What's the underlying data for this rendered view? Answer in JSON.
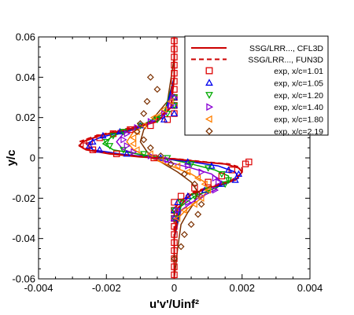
{
  "chart_data": {
    "type": "scatter",
    "xlabel": "u'v'/Uinf²",
    "ylabel": "y/c",
    "xlim": [
      -0.004,
      0.004
    ],
    "ylim": [
      -0.06,
      0.06
    ],
    "xticks": [
      -0.004,
      -0.002,
      0,
      0.002,
      0.004
    ],
    "xtick_labels": [
      "-0.004",
      "-0.002",
      "0",
      "0.002",
      "0.004"
    ],
    "yticks": [
      -0.06,
      -0.04,
      -0.02,
      0,
      0.02,
      0.04,
      0.06
    ],
    "ytick_labels": [
      "-0.06",
      "-0.04",
      "-0.02",
      "0",
      "0.02",
      "0.04",
      "0.06"
    ],
    "grid": false,
    "legend_position": "top-right",
    "lines": [
      {
        "name": "SSG/LRR..., CFL3D",
        "color": "#cc0000",
        "dash": "solid",
        "points": [
          [
            0,
            0.06
          ],
          [
            0,
            0.04
          ],
          [
            -0.0001,
            0.025
          ],
          [
            -0.0005,
            0.018
          ],
          [
            -0.0014,
            0.014
          ],
          [
            -0.0022,
            0.011
          ],
          [
            -0.0027,
            0.008
          ],
          [
            -0.0028,
            0.006
          ],
          [
            -0.0026,
            0.004
          ],
          [
            -0.0019,
            0.002
          ],
          [
            -0.001,
            0.0005
          ],
          [
            0,
            -0.0005
          ],
          [
            0.0008,
            -0.002
          ],
          [
            0.0015,
            -0.003
          ],
          [
            0.0019,
            -0.005
          ],
          [
            0.002,
            -0.007
          ],
          [
            0.0018,
            -0.011
          ],
          [
            0.0012,
            -0.014
          ],
          [
            0.0005,
            -0.018
          ],
          [
            0.0001,
            -0.025
          ],
          [
            0,
            -0.04
          ],
          [
            0,
            -0.06
          ]
        ]
      },
      {
        "name": "SSG/LRR..., FUN3D",
        "color": "#cc0000",
        "dash": "dashed",
        "points": [
          [
            0,
            0.06
          ],
          [
            0,
            0.04
          ],
          [
            -0.0001,
            0.025
          ],
          [
            -0.0006,
            0.018
          ],
          [
            -0.0015,
            0.014
          ],
          [
            -0.0023,
            0.011
          ],
          [
            -0.0028,
            0.008
          ],
          [
            -0.0028,
            0.006
          ],
          [
            -0.0025,
            0.004
          ],
          [
            -0.0018,
            0.002
          ],
          [
            -0.0009,
            0.0005
          ],
          [
            0.0001,
            -0.0006
          ],
          [
            0.0009,
            -0.002
          ],
          [
            0.0016,
            -0.003
          ],
          [
            0.002,
            -0.005
          ],
          [
            0.002,
            -0.0075
          ],
          [
            0.0017,
            -0.011
          ],
          [
            0.0011,
            -0.014
          ],
          [
            0.0004,
            -0.018
          ],
          [
            0,
            -0.025
          ],
          [
            0,
            -0.04
          ],
          [
            0,
            -0.06
          ]
        ]
      },
      {
        "name": "",
        "color": "#0000ee",
        "dash": "solid",
        "points": [
          [
            0,
            0.04
          ],
          [
            -0.0003,
            0.02
          ],
          [
            -0.0013,
            0.014
          ],
          [
            -0.0022,
            0.01
          ],
          [
            -0.0026,
            0.007
          ],
          [
            -0.0024,
            0.004
          ],
          [
            -0.0016,
            0.002
          ],
          [
            -0.0005,
            0
          ],
          [
            0.0005,
            -0.002
          ],
          [
            0.0013,
            -0.004
          ],
          [
            0.0018,
            -0.007
          ],
          [
            0.0019,
            -0.01
          ],
          [
            0.0015,
            -0.013
          ],
          [
            0.0008,
            -0.016
          ],
          [
            0.0002,
            -0.021
          ],
          [
            0,
            -0.04
          ]
        ]
      },
      {
        "name": "",
        "color": "#00aa00",
        "dash": "solid",
        "points": [
          [
            0,
            0.04
          ],
          [
            -0.0003,
            0.022
          ],
          [
            -0.0011,
            0.015
          ],
          [
            -0.0018,
            0.011
          ],
          [
            -0.0021,
            0.007
          ],
          [
            -0.0018,
            0.004
          ],
          [
            -0.0011,
            0.002
          ],
          [
            -0.0003,
            0
          ],
          [
            0.0005,
            -0.003
          ],
          [
            0.0012,
            -0.006
          ],
          [
            0.0016,
            -0.009
          ],
          [
            0.0016,
            -0.012
          ],
          [
            0.0012,
            -0.015
          ],
          [
            0.0006,
            -0.019
          ],
          [
            0.0002,
            -0.024
          ],
          [
            0,
            -0.04
          ]
        ]
      },
      {
        "name": "",
        "color": "#8a00d4",
        "dash": "solid",
        "points": [
          [
            0,
            0.04
          ],
          [
            -0.0002,
            0.023
          ],
          [
            -0.0009,
            0.016
          ],
          [
            -0.0015,
            0.012
          ],
          [
            -0.0017,
            0.008
          ],
          [
            -0.0015,
            0.004
          ],
          [
            -0.0009,
            0.001
          ],
          [
            -0.0002,
            -0.002
          ],
          [
            0.0005,
            -0.005
          ],
          [
            0.0011,
            -0.008
          ],
          [
            0.0014,
            -0.012
          ],
          [
            0.0012,
            -0.016
          ],
          [
            0.0007,
            -0.02
          ],
          [
            0.0002,
            -0.026
          ],
          [
            0,
            -0.04
          ]
        ]
      },
      {
        "name": "",
        "color": "#ff7f00",
        "dash": "solid",
        "points": [
          [
            0,
            0.04
          ],
          [
            -0.0002,
            0.025
          ],
          [
            -0.0007,
            0.018
          ],
          [
            -0.0012,
            0.013
          ],
          [
            -0.0014,
            0.008
          ],
          [
            -0.0012,
            0.004
          ],
          [
            -0.0007,
            0
          ],
          [
            -0.0001,
            -0.004
          ],
          [
            0.0005,
            -0.008
          ],
          [
            0.0009,
            -0.012
          ],
          [
            0.001,
            -0.016
          ],
          [
            0.0008,
            -0.02
          ],
          [
            0.0004,
            -0.025
          ],
          [
            0.0001,
            -0.03
          ],
          [
            0,
            -0.04
          ]
        ]
      },
      {
        "name": "",
        "color": "#7b3000",
        "dash": "solid",
        "points": [
          [
            0,
            0.05
          ],
          [
            -0.0002,
            0.028
          ],
          [
            -0.0006,
            0.02
          ],
          [
            -0.0009,
            0.014
          ],
          [
            -0.001,
            0.008
          ],
          [
            -0.0008,
            0.003
          ],
          [
            -0.0004,
            -0.002
          ],
          [
            0.0001,
            -0.007
          ],
          [
            0.0005,
            -0.012
          ],
          [
            0.0007,
            -0.017
          ],
          [
            0.0006,
            -0.022
          ],
          [
            0.0004,
            -0.027
          ],
          [
            0.0002,
            -0.033
          ],
          [
            0.0001,
            -0.045
          ],
          [
            0,
            -0.06
          ]
        ]
      }
    ],
    "series": [
      {
        "name": "exp, x/c=1.01",
        "marker": "square",
        "color": "#dd0000",
        "points": [
          [
            0,
            0.058
          ],
          [
            0,
            0.054
          ],
          [
            0,
            0.05
          ],
          [
            0,
            0.046
          ],
          [
            0,
            0.042
          ],
          [
            0,
            0.038
          ],
          [
            0,
            0.034
          ],
          [
            0,
            0.03
          ],
          [
            0,
            0.026
          ],
          [
            0,
            0.022
          ],
          [
            -0.0002,
            0.019
          ],
          [
            -0.0007,
            0.016
          ],
          [
            -0.0013,
            0.014
          ],
          [
            -0.0018,
            0.012
          ],
          [
            -0.0022,
            0.01
          ],
          [
            -0.0025,
            0.008
          ],
          [
            -0.0026,
            0.006
          ],
          [
            -0.0024,
            0.004
          ],
          [
            -0.0017,
            0.002
          ],
          [
            -0.0006,
            0
          ],
          [
            0.0022,
            -0.002
          ],
          [
            0.0021,
            -0.003
          ],
          [
            0.0017,
            -0.006
          ],
          [
            0.0014,
            -0.009
          ],
          [
            0.001,
            -0.012
          ],
          [
            0.0006,
            -0.015
          ],
          [
            0.0002,
            -0.019
          ],
          [
            0,
            -0.022
          ],
          [
            0,
            -0.026
          ],
          [
            0,
            -0.03
          ],
          [
            0,
            -0.034
          ],
          [
            0,
            -0.038
          ],
          [
            0,
            -0.042
          ],
          [
            0,
            -0.046
          ],
          [
            0,
            -0.05
          ],
          [
            0,
            -0.054
          ],
          [
            0,
            -0.058
          ]
        ]
      },
      {
        "name": "exp, x/c=1.05",
        "marker": "triangle-up",
        "color": "#0000ee",
        "points": [
          [
            0,
            0.03
          ],
          [
            0,
            0.026
          ],
          [
            0,
            0.022
          ],
          [
            -0.0003,
            0.019
          ],
          [
            -0.001,
            0.016
          ],
          [
            -0.0016,
            0.013
          ],
          [
            -0.0021,
            0.011
          ],
          [
            -0.0024,
            0.008
          ],
          [
            -0.0025,
            0.006
          ],
          [
            -0.0022,
            0.004
          ],
          [
            -0.0014,
            0.002
          ],
          [
            -0.0004,
            0
          ],
          [
            0.0004,
            -0.002
          ],
          [
            0.0011,
            -0.004
          ],
          [
            0.0016,
            -0.006
          ],
          [
            0.0019,
            -0.008
          ],
          [
            0.0018,
            -0.011
          ],
          [
            0.0014,
            -0.013
          ],
          [
            0.0009,
            -0.016
          ],
          [
            0.0004,
            -0.019
          ],
          [
            0.0001,
            -0.022
          ],
          [
            0,
            -0.026
          ],
          [
            0,
            -0.03
          ]
        ]
      },
      {
        "name": "exp, x/c=1.20",
        "marker": "triangle-down",
        "color": "#00aa00",
        "points": [
          [
            0,
            0.03
          ],
          [
            0,
            0.026
          ],
          [
            -0.0002,
            0.022
          ],
          [
            -0.0005,
            0.019
          ],
          [
            -0.001,
            0.016
          ],
          [
            -0.0015,
            0.013
          ],
          [
            -0.0018,
            0.011
          ],
          [
            -0.002,
            0.008
          ],
          [
            -0.0019,
            0.006
          ],
          [
            -0.0015,
            0.004
          ],
          [
            -0.0009,
            0.002
          ],
          [
            -0.0002,
            0
          ],
          [
            0.0005,
            -0.003
          ],
          [
            0.001,
            -0.005
          ],
          [
            0.0014,
            -0.008
          ],
          [
            0.0016,
            -0.011
          ],
          [
            0.0015,
            -0.013
          ],
          [
            0.001,
            -0.016
          ],
          [
            0.0006,
            -0.019
          ],
          [
            0.0002,
            -0.022
          ],
          [
            0,
            -0.026
          ],
          [
            0,
            -0.03
          ]
        ]
      },
      {
        "name": "exp, x/c=1.40",
        "marker": "triangle-right",
        "color": "#8a00d4",
        "points": [
          [
            0,
            0.03
          ],
          [
            -0.0001,
            0.026
          ],
          [
            -0.0003,
            0.022
          ],
          [
            -0.0007,
            0.018
          ],
          [
            -0.0011,
            0.015
          ],
          [
            -0.0014,
            0.012
          ],
          [
            -0.0015,
            0.009
          ],
          [
            -0.0014,
            0.006
          ],
          [
            -0.0012,
            0.003
          ],
          [
            -0.0007,
            0.001
          ],
          [
            -0.0002,
            -0.001
          ],
          [
            0.0004,
            -0.004
          ],
          [
            0.0008,
            -0.007
          ],
          [
            0.0012,
            -0.01
          ],
          [
            0.0013,
            -0.012
          ],
          [
            0.0012,
            -0.016
          ],
          [
            0.0008,
            -0.019
          ],
          [
            0.0004,
            -0.022
          ],
          [
            0.0001,
            -0.026
          ],
          [
            0,
            -0.03
          ]
        ]
      },
      {
        "name": "exp, x/c=1.80",
        "marker": "triangle-left",
        "color": "#ff7f00",
        "points": [
          [
            -0.0001,
            0.028
          ],
          [
            -0.0003,
            0.024
          ],
          [
            -0.0006,
            0.02
          ],
          [
            -0.0009,
            0.016
          ],
          [
            -0.0011,
            0.013
          ],
          [
            -0.0012,
            0.01
          ],
          [
            -0.0012,
            0.007
          ],
          [
            -0.0011,
            0.004
          ],
          [
            -0.0007,
            0.002
          ],
          [
            -0.0004,
            -0.001
          ],
          [
            0.0001,
            -0.004
          ],
          [
            0.0004,
            -0.007
          ],
          [
            0.0007,
            -0.01
          ],
          [
            0.0009,
            -0.013
          ],
          [
            0.001,
            -0.016
          ],
          [
            0.0008,
            -0.02
          ],
          [
            0.0006,
            -0.023
          ],
          [
            0.0003,
            -0.026
          ],
          [
            0.0001,
            -0.03
          ]
        ]
      },
      {
        "name": "exp, x/c=2.19",
        "marker": "diamond",
        "color": "#7b3000",
        "points": [
          [
            -0.0007,
            0.04
          ],
          [
            -0.0005,
            0.034
          ],
          [
            -0.0008,
            0.028
          ],
          [
            -0.0009,
            0.022
          ],
          [
            -0.001,
            0.017
          ],
          [
            -0.0011,
            0.013
          ],
          [
            -0.0009,
            0.009
          ],
          [
            -0.0007,
            0.005
          ],
          [
            -0.0004,
            0.001
          ],
          [
            -0.0001,
            -0.003
          ],
          [
            0.0003,
            -0.008
          ],
          [
            0.0006,
            -0.013
          ],
          [
            0.0007,
            -0.018
          ],
          [
            0.0008,
            -0.023
          ],
          [
            0.0007,
            -0.028
          ],
          [
            0.0005,
            -0.033
          ],
          [
            0.0003,
            -0.038
          ],
          [
            0.0002,
            -0.044
          ],
          [
            0,
            -0.05
          ]
        ]
      }
    ]
  }
}
